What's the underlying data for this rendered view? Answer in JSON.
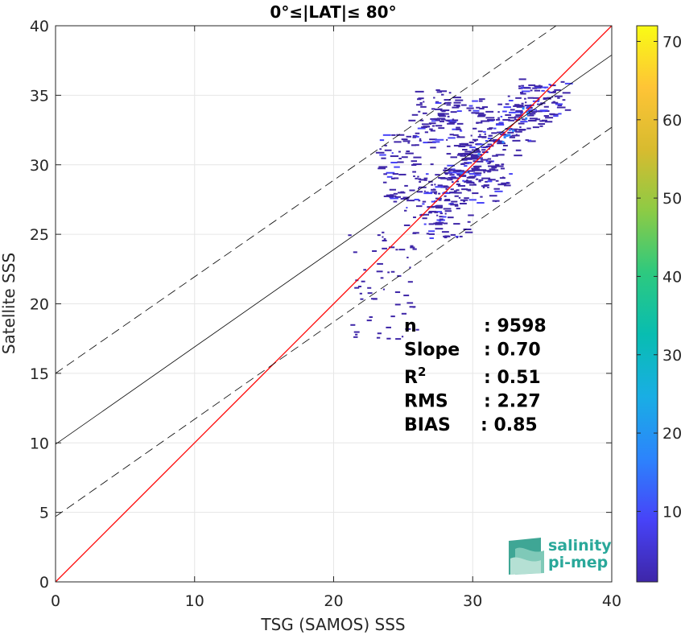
{
  "chart_data": {
    "type": "heatmap",
    "title": "0°≤|LAT|≤ 80°",
    "xlabel": "TSG (SAMOS) SSS",
    "ylabel": "Satellite SSS",
    "xlim": [
      0,
      40
    ],
    "ylim": [
      0,
      40
    ],
    "xticks": [
      "0",
      "10",
      "20",
      "30",
      "40"
    ],
    "yticks": [
      "0",
      "5",
      "10",
      "15",
      "20",
      "25",
      "30",
      "35",
      "40"
    ],
    "grid": true,
    "lines": [
      {
        "name": "1:1",
        "color": "#ff0000",
        "style": "solid",
        "x": [
          0,
          40
        ],
        "y": [
          0,
          40
        ]
      },
      {
        "name": "fit",
        "color": "#000000",
        "style": "solid",
        "x": [
          0,
          40
        ],
        "y": [
          9.9,
          37.9
        ]
      },
      {
        "name": "fit+",
        "color": "#000000",
        "style": "dashed",
        "x": [
          0,
          36
        ],
        "y": [
          15.0,
          40.0
        ]
      },
      {
        "name": "fit-",
        "color": "#000000",
        "style": "dashed",
        "x": [
          0,
          40
        ],
        "y": [
          4.7,
          32.7
        ]
      }
    ],
    "density_core": [
      {
        "x": 26.5,
        "y": 27.0
      },
      {
        "x": 27.5,
        "y": 28.5
      },
      {
        "x": 28.5,
        "y": 29.8
      },
      {
        "x": 29.5,
        "y": 30.5
      },
      {
        "x": 30.5,
        "y": 31.2
      },
      {
        "x": 31.5,
        "y": 32.0
      },
      {
        "x": 32.5,
        "y": 33.0
      },
      {
        "x": 33.5,
        "y": 33.8
      },
      {
        "x": 34.5,
        "y": 34.5
      },
      {
        "x": 35.0,
        "y": 35.0
      },
      {
        "x": 25.0,
        "y": 28.5
      },
      {
        "x": 24.5,
        "y": 31.0
      },
      {
        "x": 27.0,
        "y": 32.5
      },
      {
        "x": 28.0,
        "y": 26.0
      },
      {
        "x": 30.0,
        "y": 28.5
      },
      {
        "x": 31.0,
        "y": 29.5
      },
      {
        "x": 29.0,
        "y": 33.5
      },
      {
        "x": 27.5,
        "y": 34.2
      }
    ],
    "colorbar": {
      "min": 1,
      "max": 72,
      "ticks": [
        "10",
        "20",
        "30",
        "40",
        "50",
        "60",
        "70"
      ],
      "colormap": [
        "#3e26a8",
        "#4743f8",
        "#2c84fc",
        "#19aee4",
        "#08bdb1",
        "#2dc97f",
        "#8ccb45",
        "#d8bb2f",
        "#fec436",
        "#f9fb15"
      ]
    },
    "stats": [
      {
        "label": "n",
        "value": ": 9598"
      },
      {
        "label": "Slope",
        "value": ": 0.70"
      },
      {
        "label": "R",
        "sup": "2",
        "value": ": 0.51"
      },
      {
        "label": "RMS",
        "value": ": 2.27"
      },
      {
        "label": "BIAS",
        "value": ": 0.85"
      }
    ]
  },
  "logo": {
    "line1": "salinity",
    "line2": "pi-mep"
  }
}
